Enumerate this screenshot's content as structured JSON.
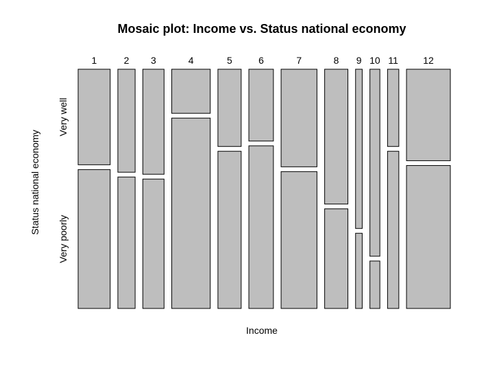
{
  "chart_data": {
    "type": "mosaic",
    "title": "Mosaic plot: Income vs. Status national economy",
    "xlabel": "Income",
    "ylabel": "Status national economy",
    "categories": [
      "1",
      "2",
      "3",
      "4",
      "5",
      "6",
      "7",
      "8",
      "9",
      "10",
      "11",
      "12"
    ],
    "column_shares": [
      0.144,
      0.0776,
      0.0955,
      0.1731,
      0.1045,
      0.1104,
      0.1612,
      0.1045,
      0.0299,
      0.0448,
      0.0507,
      0.197
    ],
    "row_levels": [
      "Very well",
      "Very poorly"
    ],
    "very_well_fraction": [
      0.4075,
      0.4393,
      0.448,
      0.1879,
      0.3295,
      0.3064,
      0.4162,
      0.5751,
      0.6792,
      0.7977,
      0.3295,
      0.3902
    ]
  }
}
